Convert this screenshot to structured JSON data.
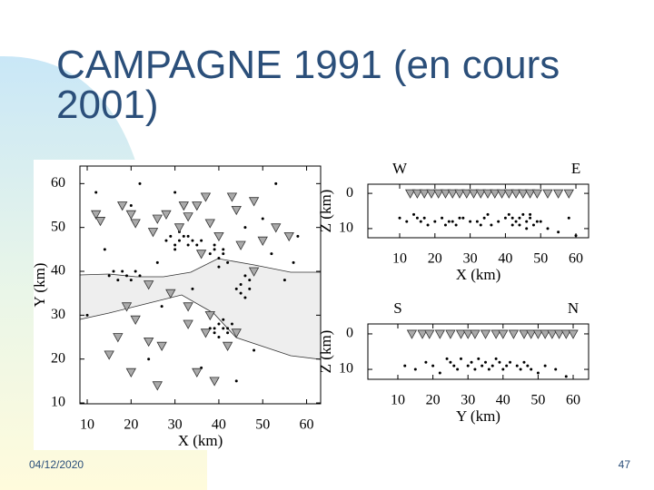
{
  "header": {
    "title_line1": "CAMPAGNE 1991 (en cours",
    "title_line2": "2001)"
  },
  "footer": {
    "date": "04/12/2020",
    "page": "47"
  },
  "chart_data": [
    {
      "type": "scatter",
      "xlabel": "X (km)",
      "ylabel": "Y (km)",
      "xlim": [
        8.34,
        63.2
      ],
      "ylim": [
        9.8,
        64.0
      ],
      "xticks": [
        10,
        20,
        30,
        40,
        50,
        60
      ],
      "yticks": [
        10,
        20,
        30,
        40,
        50,
        60
      ],
      "stations": {
        "x": [
          12,
          13,
          18,
          20,
          21,
          25,
          26,
          28,
          31,
          32,
          33,
          35,
          38,
          37,
          43,
          48,
          44,
          40,
          45,
          50,
          53,
          56,
          24,
          29,
          33,
          19,
          21,
          24,
          27,
          33,
          37,
          38,
          42,
          44,
          17,
          20,
          26,
          15,
          35,
          39,
          36,
          48
        ],
        "y": [
          53,
          51.5,
          55,
          53,
          51,
          49,
          52,
          53,
          50,
          55,
          52.5,
          55,
          51,
          57,
          57,
          56,
          54,
          48,
          46,
          47,
          50,
          48,
          37,
          35,
          32,
          32,
          29,
          24,
          23,
          28,
          26,
          30,
          23,
          26,
          25,
          17,
          14,
          21,
          17,
          15,
          44,
          40
        ]
      },
      "events": {
        "x": [
          28,
          29,
          30,
          31,
          32,
          33,
          34,
          30,
          31,
          33,
          35,
          36,
          38,
          39,
          40,
          41,
          42,
          39,
          40,
          41,
          44,
          45,
          46,
          47,
          46,
          45,
          47,
          48,
          38,
          39,
          40,
          41,
          42,
          43,
          40,
          41,
          39,
          42,
          44,
          15,
          16,
          17,
          18,
          19,
          20,
          21,
          22,
          12,
          14,
          22,
          26,
          34,
          50,
          52,
          55,
          58,
          10,
          24,
          36,
          48,
          57,
          20,
          30,
          46,
          53,
          27,
          44
        ],
        "y": [
          47,
          48,
          46,
          47,
          48,
          46,
          47,
          45,
          49,
          48,
          46,
          47,
          44,
          45,
          43,
          44,
          42,
          46,
          41,
          45,
          36,
          37,
          34,
          38,
          39,
          35,
          36,
          40,
          27,
          26,
          28,
          27,
          26,
          28,
          25,
          29,
          27,
          27,
          26,
          39,
          40,
          38,
          40,
          39,
          38,
          40,
          39,
          58,
          45,
          60,
          42,
          36,
          52,
          44,
          38,
          48,
          30,
          20,
          18,
          22,
          42,
          55,
          58,
          50,
          60,
          32,
          15
        ]
      }
    },
    {
      "type": "scatter",
      "corner_labels": [
        "W",
        "E"
      ],
      "xlabel": "X (km)",
      "ylabel": "Z (km)",
      "xlim": [
        0.98,
        63.6
      ],
      "ylim": [
        12.6,
        -2.6
      ],
      "xticks": [
        10,
        20,
        30,
        40,
        50,
        60
      ],
      "yticks": [
        0,
        10
      ],
      "stations": {
        "x": [
          13,
          15,
          17,
          19,
          21,
          23,
          25,
          27,
          29,
          31,
          33,
          35,
          37,
          39,
          41,
          43,
          45,
          47,
          49,
          52,
          55,
          58
        ],
        "y": [
          0,
          0,
          0,
          0,
          0,
          0,
          0,
          0,
          0,
          0,
          0,
          0,
          0,
          0,
          0,
          0,
          0,
          0,
          0,
          0,
          0,
          0
        ]
      },
      "events": {
        "x": [
          10,
          12,
          14,
          15,
          16,
          17,
          18,
          20,
          22,
          24,
          26,
          28,
          30,
          32,
          34,
          36,
          38,
          40,
          42,
          43,
          44,
          45,
          46,
          47,
          48,
          50,
          52,
          55,
          58,
          60,
          41,
          42,
          44,
          46,
          47,
          49,
          23,
          25,
          27,
          33,
          35
        ],
        "y": [
          7,
          8,
          6,
          7,
          8,
          7,
          9,
          8,
          7,
          8,
          9,
          7,
          8,
          8,
          7,
          9,
          8,
          7,
          7,
          8,
          9,
          6,
          8,
          7,
          9,
          8,
          10,
          11,
          7,
          12,
          6,
          9,
          7,
          10,
          6,
          8,
          9,
          8,
          7,
          9,
          6
        ]
      }
    },
    {
      "type": "scatter",
      "corner_labels": [
        "S",
        "N"
      ],
      "xlabel": "Y (km)",
      "ylabel": "Z (km)",
      "xlim": [
        1.45,
        64.4
      ],
      "ylim": [
        12.8,
        -2.8
      ],
      "xticks": [
        10,
        20,
        30,
        40,
        50,
        60
      ],
      "yticks": [
        0,
        10
      ],
      "stations": {
        "x": [
          14,
          17,
          19,
          22,
          25,
          28,
          30,
          32,
          35,
          38,
          40,
          43,
          46,
          48,
          50,
          52,
          54,
          56,
          58,
          60
        ],
        "y": [
          0,
          0,
          0,
          0,
          0,
          0,
          0,
          0,
          0,
          0,
          0,
          0,
          0,
          0,
          0,
          0,
          0,
          0,
          0,
          0
        ]
      },
      "events": {
        "x": [
          12,
          15,
          18,
          20,
          22,
          24,
          25,
          26,
          27,
          28,
          30,
          31,
          32,
          33,
          34,
          35,
          36,
          37,
          38,
          39,
          40,
          41,
          42,
          44,
          45,
          46,
          47,
          48,
          50,
          52,
          55,
          58
        ],
        "y": [
          9,
          10,
          8,
          9,
          11,
          7,
          8,
          9,
          10,
          7,
          9,
          8,
          10,
          7,
          9,
          8,
          10,
          9,
          7,
          8,
          10,
          9,
          8,
          9,
          10,
          8,
          9,
          10,
          11,
          9,
          10,
          12
        ]
      }
    }
  ]
}
